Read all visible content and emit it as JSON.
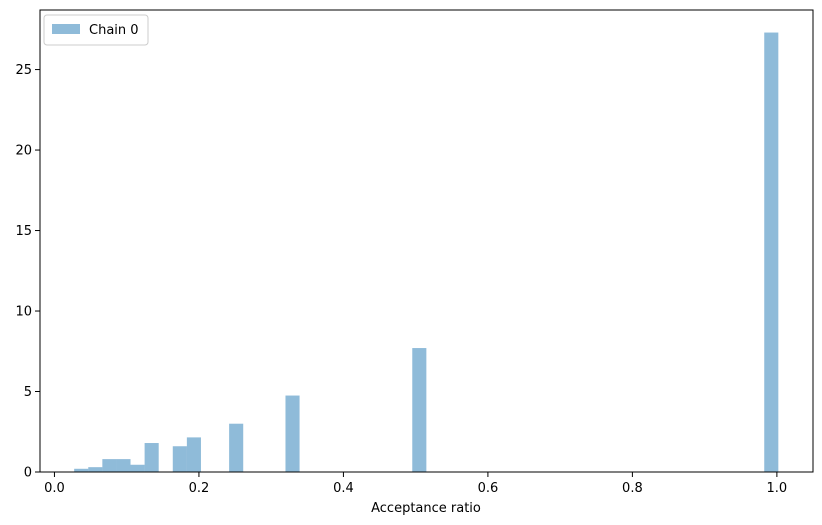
{
  "chart_data": {
    "type": "bar",
    "xlabel": "Acceptance ratio",
    "ylabel": "",
    "xlim": [
      -0.02,
      1.05
    ],
    "ylim": [
      0,
      28.7
    ],
    "xticks": [
      0.0,
      0.2,
      0.4,
      0.6,
      0.8,
      1.0
    ],
    "yticks": [
      0,
      5,
      10,
      15,
      20,
      25
    ],
    "xtick_labels": [
      "0.0",
      "0.2",
      "0.4",
      "0.6",
      "0.8",
      "1.0"
    ],
    "ytick_labels": [
      "0",
      "5",
      "10",
      "15",
      "20",
      "25"
    ],
    "bin_width": 0.0195,
    "grid": false,
    "legend_position": "top-left",
    "series": [
      {
        "name": "Chain 0",
        "color": "#1f77b4",
        "opacity": 0.5,
        "bins": [
          {
            "x0": 0.0273,
            "value": 0.2
          },
          {
            "x0": 0.0468,
            "value": 0.3
          },
          {
            "x0": 0.0663,
            "value": 0.8
          },
          {
            "x0": 0.0858,
            "value": 0.8
          },
          {
            "x0": 0.1053,
            "value": 0.45
          },
          {
            "x0": 0.1248,
            "value": 1.8
          },
          {
            "x0": 0.1638,
            "value": 1.6
          },
          {
            "x0": 0.1833,
            "value": 2.15
          },
          {
            "x0": 0.2418,
            "value": 3.0
          },
          {
            "x0": 0.3198,
            "value": 4.75
          },
          {
            "x0": 0.4953,
            "value": 7.7
          },
          {
            "x0": 0.9825,
            "value": 27.3
          }
        ]
      }
    ]
  }
}
